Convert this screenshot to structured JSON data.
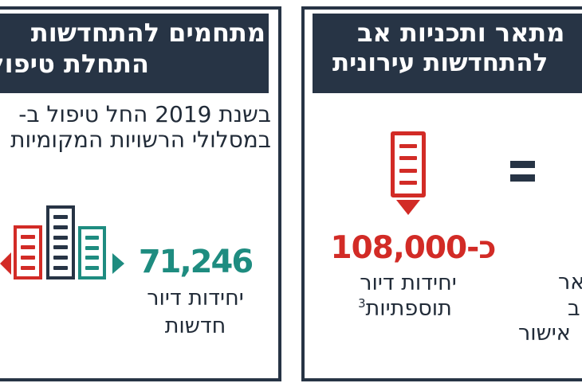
{
  "colors": {
    "navy": "#273445",
    "red": "#d22b26",
    "teal": "#1e8c80",
    "text": "#212b38",
    "background": "#ffffff"
  },
  "left_card": {
    "header_line1": "מתחמים להתחדשות",
    "header_line2": "התחלת טיפול",
    "body_line1": "בשנת 2019 החל טיפול ב-",
    "body_line2": "במסלולי הרשויות המקומיות",
    "stat_value": "71,246",
    "stat_label_line1": "יחידות דיור",
    "stat_label_line2": "חדשות",
    "icons": [
      "arrow-left-icon",
      "building-icon-red",
      "building-icon-navy",
      "building-icon-teal",
      "arrow-right-icon"
    ]
  },
  "right_card": {
    "header_line1": "מתאר ותכניות אב",
    "header_line2": "להתחדשות עירונית",
    "stat_value": "כ-108,000",
    "stat_label_line1": "יחידות דיור",
    "stat_label_line2_word": "תוספתיות",
    "stat_label_line2_sup": "3",
    "edge_text_line1": "אר",
    "edge_text_line2": "ב",
    "edge_text_line3": "אישור",
    "icons": [
      "document-icon",
      "arrow-down-icon",
      "equals-icon"
    ]
  }
}
